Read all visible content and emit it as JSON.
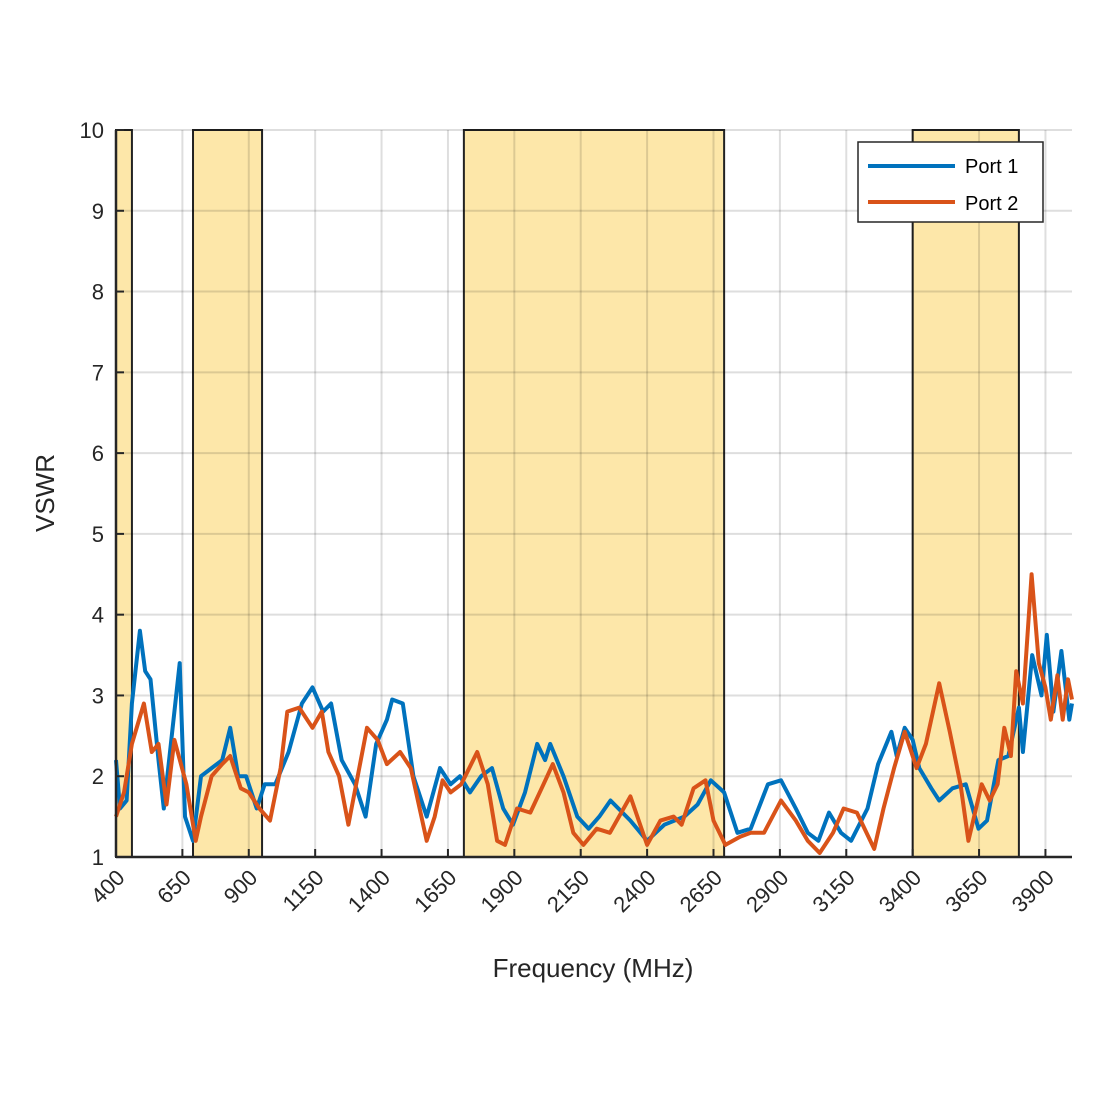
{
  "chart_data": {
    "type": "line",
    "title": "",
    "xlabel": "Frequency (MHz)",
    "ylabel": "VSWR",
    "xlim": [
      400,
      4000
    ],
    "ylim": [
      1,
      10
    ],
    "xticks": [
      400,
      650,
      900,
      1150,
      1400,
      1650,
      1900,
      2150,
      2400,
      2650,
      2900,
      3150,
      3400,
      3650,
      3900
    ],
    "yticks": [
      1,
      2,
      3,
      4,
      5,
      6,
      7,
      8,
      9,
      10
    ],
    "grid": true,
    "legend_position": "top-right",
    "shaded_bands": [
      [
        400,
        460
      ],
      [
        690,
        950
      ],
      [
        1710,
        2690
      ],
      [
        3400,
        3800
      ]
    ],
    "band_color": "#fde7a9",
    "series": [
      {
        "name": "Port 1",
        "color": "#0072bd",
        "x": [
          400,
          415,
          440,
          460,
          490,
          510,
          530,
          560,
          580,
          600,
          640,
          660,
          690,
          720,
          760,
          800,
          830,
          860,
          890,
          930,
          960,
          1000,
          1050,
          1100,
          1140,
          1180,
          1210,
          1250,
          1300,
          1340,
          1380,
          1420,
          1440,
          1480,
          1520,
          1570,
          1620,
          1660,
          1695,
          1733,
          1775,
          1816,
          1858,
          1895,
          1940,
          1986,
          2016,
          2035,
          2085,
          2137,
          2180,
          2220,
          2262,
          2337,
          2400,
          2465,
          2540,
          2590,
          2640,
          2690,
          2740,
          2790,
          2855,
          2904,
          2960,
          3005,
          3045,
          3085,
          3130,
          3168,
          3230,
          3270,
          3320,
          3340,
          3370,
          3400,
          3425,
          3470,
          3500,
          3550,
          3600,
          3648,
          3680,
          3723,
          3760,
          3800,
          3815,
          3850,
          3885,
          3905,
          3930,
          3960,
          3990,
          4000
        ],
        "y": [
          2.2,
          1.6,
          1.7,
          2.9,
          3.8,
          3.3,
          3.2,
          2.2,
          1.6,
          2.2,
          3.4,
          1.5,
          1.2,
          2.0,
          2.1,
          2.2,
          2.6,
          2.0,
          2.0,
          1.6,
          1.9,
          1.9,
          2.3,
          2.9,
          3.1,
          2.8,
          2.9,
          2.2,
          1.9,
          1.5,
          2.4,
          2.7,
          2.95,
          2.9,
          2.0,
          1.5,
          2.1,
          1.9,
          2.0,
          1.8,
          2.0,
          2.1,
          1.6,
          1.4,
          1.8,
          2.4,
          2.2,
          2.4,
          2.0,
          1.5,
          1.35,
          1.5,
          1.7,
          1.45,
          1.2,
          1.4,
          1.5,
          1.65,
          1.95,
          1.8,
          1.3,
          1.35,
          1.9,
          1.95,
          1.6,
          1.3,
          1.2,
          1.55,
          1.3,
          1.2,
          1.6,
          2.15,
          2.55,
          2.25,
          2.6,
          2.45,
          2.1,
          1.85,
          1.7,
          1.85,
          1.9,
          1.35,
          1.45,
          2.2,
          2.25,
          2.85,
          2.3,
          3.5,
          3.0,
          3.75,
          2.8,
          3.55,
          2.7,
          2.9
        ]
      },
      {
        "name": "Port 2",
        "color": "#d95319",
        "x": [
          400,
          430,
          460,
          505,
          535,
          560,
          590,
          620,
          665,
          700,
          720,
          760,
          800,
          830,
          870,
          900,
          940,
          980,
          1020,
          1045,
          1090,
          1140,
          1175,
          1200,
          1240,
          1275,
          1310,
          1345,
          1385,
          1420,
          1470,
          1510,
          1570,
          1600,
          1630,
          1660,
          1700,
          1760,
          1800,
          1835,
          1865,
          1910,
          1960,
          2010,
          2045,
          2085,
          2122,
          2160,
          2210,
          2260,
          2337,
          2400,
          2450,
          2500,
          2530,
          2575,
          2620,
          2650,
          2695,
          2750,
          2790,
          2840,
          2904,
          2960,
          3005,
          3050,
          3100,
          3140,
          3190,
          3255,
          3290,
          3330,
          3370,
          3415,
          3450,
          3500,
          3540,
          3580,
          3610,
          3660,
          3690,
          3720,
          3745,
          3770,
          3790,
          3815,
          3848,
          3875,
          3900,
          3920,
          3945,
          3965,
          3985,
          4000
        ],
        "y": [
          1.5,
          1.8,
          2.4,
          2.9,
          2.3,
          2.4,
          1.65,
          2.45,
          1.9,
          1.2,
          1.5,
          2.0,
          2.15,
          2.25,
          1.85,
          1.8,
          1.6,
          1.45,
          2.1,
          2.8,
          2.85,
          2.6,
          2.8,
          2.3,
          2.0,
          1.4,
          2.0,
          2.6,
          2.45,
          2.15,
          2.3,
          2.1,
          1.2,
          1.5,
          1.95,
          1.8,
          1.9,
          2.3,
          1.9,
          1.2,
          1.15,
          1.6,
          1.55,
          1.9,
          2.15,
          1.8,
          1.3,
          1.15,
          1.35,
          1.3,
          1.75,
          1.15,
          1.45,
          1.5,
          1.4,
          1.85,
          1.95,
          1.45,
          1.15,
          1.25,
          1.3,
          1.3,
          1.7,
          1.45,
          1.2,
          1.05,
          1.3,
          1.6,
          1.55,
          1.1,
          1.6,
          2.1,
          2.55,
          2.1,
          2.4,
          3.15,
          2.55,
          1.9,
          1.2,
          1.9,
          1.7,
          1.9,
          2.6,
          2.25,
          3.3,
          2.9,
          4.5,
          3.4,
          3.1,
          2.7,
          3.25,
          2.7,
          3.2,
          2.95
        ]
      }
    ]
  }
}
